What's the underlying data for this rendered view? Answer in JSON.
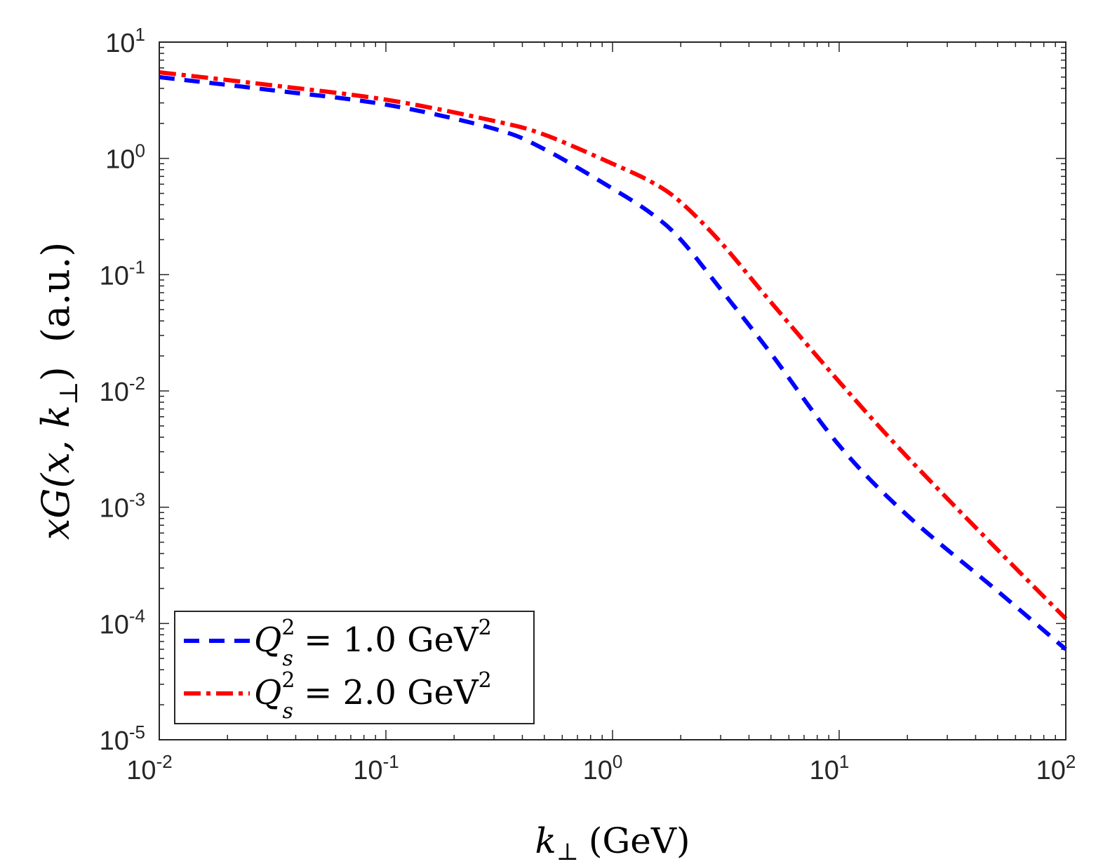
{
  "chart_data": {
    "type": "line",
    "x_scale": "log",
    "y_scale": "log",
    "xlim": [
      0.01,
      100
    ],
    "ylim": [
      1e-05,
      10
    ],
    "x_ticks": [
      {
        "base": "10",
        "exp": "-2",
        "value": 0.01
      },
      {
        "base": "10",
        "exp": "-1",
        "value": 0.1
      },
      {
        "base": "10",
        "exp": "0",
        "value": 1
      },
      {
        "base": "10",
        "exp": "1",
        "value": 10
      },
      {
        "base": "10",
        "exp": "2",
        "value": 100
      }
    ],
    "y_ticks": [
      {
        "base": "10",
        "exp": "1",
        "value": 10
      },
      {
        "base": "10",
        "exp": "0",
        "value": 1
      },
      {
        "base": "10",
        "exp": "-1",
        "value": 0.1
      },
      {
        "base": "10",
        "exp": "-2",
        "value": 0.01
      },
      {
        "base": "10",
        "exp": "-3",
        "value": 0.001
      },
      {
        "base": "10",
        "exp": "-4",
        "value": 0.0001
      },
      {
        "base": "10",
        "exp": "-5",
        "value": 1e-05
      }
    ],
    "xlabel": {
      "var": "k",
      "sub": "⊥",
      "rest": "(GeV)"
    },
    "ylabel": {
      "lead": "xG(x, k",
      "sub": "⊥",
      "close": ")",
      "units": "(a.u.)"
    },
    "legend": {
      "position": "bottom-left",
      "entries": [
        {
          "var": "Q",
          "sup": "2",
          "sub": "s",
          "mid": " = 1.0 GeV",
          "unit_sup": "2"
        },
        {
          "var": "Q",
          "sup": "2",
          "sub": "s",
          "mid": " = 2.0 GeV",
          "unit_sup": "2"
        }
      ]
    },
    "series": [
      {
        "name": "Q_s^2 = 1.0 GeV^2",
        "color": "#0000ff",
        "style": "dashed",
        "x": [
          0.01,
          0.03,
          0.1,
          0.3,
          0.5,
          1,
          1.5,
          2,
          3,
          5,
          10,
          20,
          50,
          100
        ],
        "y": [
          5.0,
          3.9,
          2.9,
          1.8,
          1.2,
          0.55,
          0.33,
          0.2,
          0.075,
          0.021,
          0.0034,
          0.00085,
          0.00019,
          6e-05
        ]
      },
      {
        "name": "Q_s^2 = 2.0 GeV^2",
        "color": "#ff0000",
        "style": "dashdot",
        "x": [
          0.01,
          0.03,
          0.1,
          0.3,
          0.5,
          1,
          1.5,
          2,
          3,
          5,
          10,
          20,
          50,
          100
        ],
        "y": [
          5.5,
          4.3,
          3.2,
          2.1,
          1.6,
          0.9,
          0.62,
          0.42,
          0.19,
          0.058,
          0.012,
          0.0027,
          0.00043,
          0.00011
        ]
      }
    ]
  }
}
